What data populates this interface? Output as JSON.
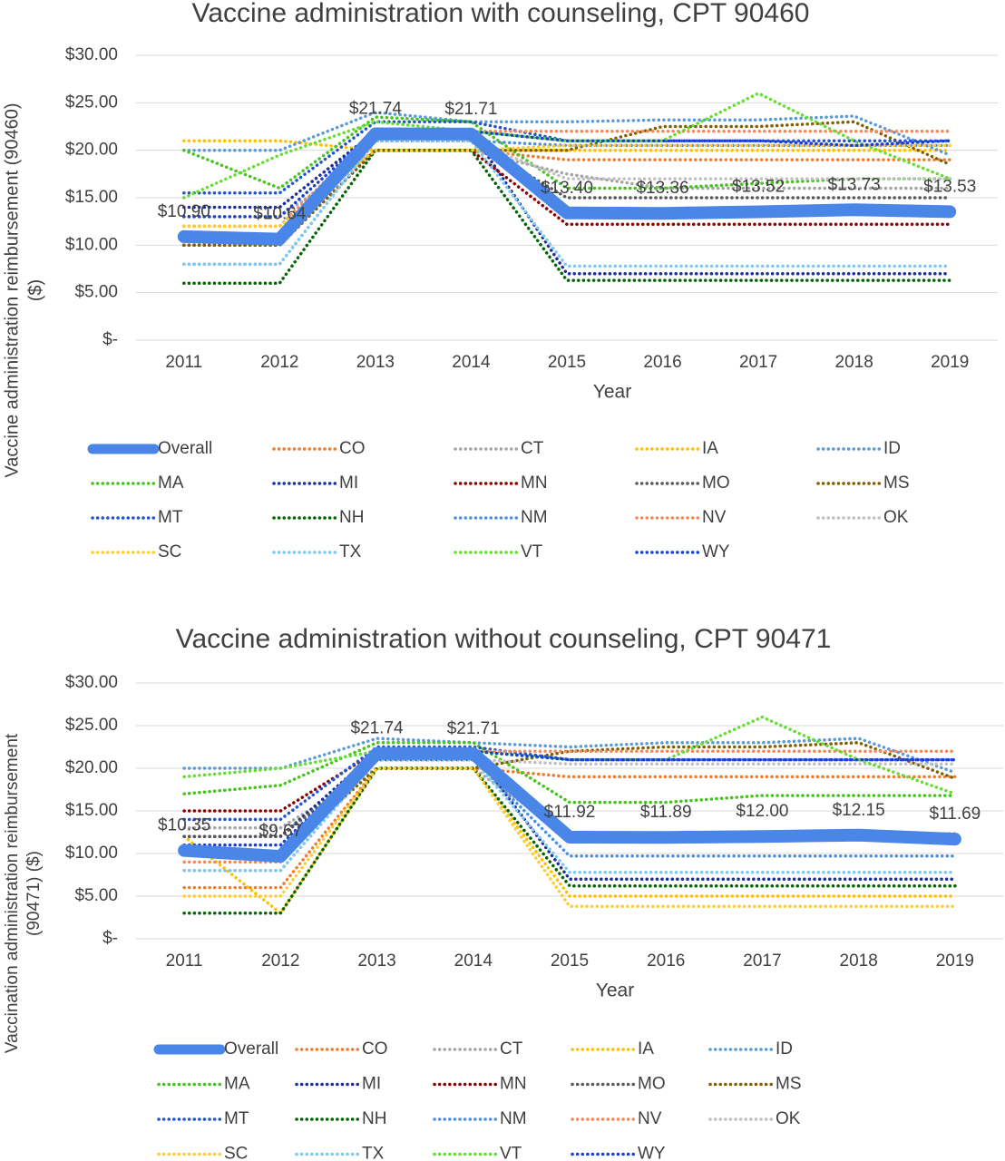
{
  "chart_data": [
    {
      "type": "line",
      "title": "Vaccine administration with counseling, CPT 90460",
      "xlabel": "Year",
      "ylabel": [
        "Vaccine administration reimbursement (90460)",
        "($)"
      ],
      "categories": [
        "2011",
        "2012",
        "2013",
        "2014",
        "2015",
        "2016",
        "2017",
        "2018",
        "2019"
      ],
      "ylim": [
        0,
        30
      ],
      "yticks": [
        {
          "value": 0,
          "label": "$-"
        },
        {
          "value": 5,
          "label": "$5.00"
        },
        {
          "value": 10,
          "label": "$10.00"
        },
        {
          "value": 15,
          "label": "$15.00"
        },
        {
          "value": 20,
          "label": "$20.00"
        },
        {
          "value": 25,
          "label": "$25.00"
        },
        {
          "value": 30,
          "label": "$30.00"
        }
      ],
      "grid": true,
      "series": [
        {
          "name": "Overall",
          "color": "#4a86e8",
          "values": [
            10.9,
            10.64,
            21.74,
            21.71,
            13.4,
            13.36,
            13.52,
            13.73,
            13.53
          ],
          "value_labels": [
            "$10.90",
            "$10.64",
            "$21.74",
            "$21.71",
            "$13.40",
            "$13.36",
            "$13.52",
            "$13.73",
            "$13.53"
          ]
        },
        {
          "name": "CO",
          "color": "#ed7d31",
          "values": [
            12,
            12,
            20,
            20,
            19,
            19,
            19,
            19,
            19
          ]
        },
        {
          "name": "CT",
          "color": "#a5a5a5",
          "values": [
            13,
            13,
            20,
            20,
            17.5,
            16,
            16,
            16,
            16
          ]
        },
        {
          "name": "IA",
          "color": "#ffc000",
          "values": [
            21,
            21,
            20,
            20,
            20,
            20,
            20,
            20,
            20
          ]
        },
        {
          "name": "ID",
          "color": "#5b9bd5",
          "values": [
            20,
            20,
            24,
            23,
            23,
            23.2,
            23.2,
            23.6,
            19.5
          ]
        },
        {
          "name": "MA",
          "color": "#44c41c",
          "values": [
            20,
            16,
            23.5,
            23,
            16,
            16,
            16.5,
            17,
            17
          ]
        },
        {
          "name": "MI",
          "color": "#1c2f99",
          "values": [
            14,
            14,
            22,
            22,
            7,
            7,
            7,
            7,
            7
          ]
        },
        {
          "name": "MN",
          "color": "#8b0000",
          "values": [
            10,
            10,
            20,
            20,
            12.2,
            12.2,
            12.2,
            12.2,
            12.2
          ]
        },
        {
          "name": "MO",
          "color": "#595959",
          "values": [
            10,
            10,
            21,
            21,
            15,
            15,
            15,
            15,
            15
          ]
        },
        {
          "name": "MS",
          "color": "#7f5f00",
          "values": [
            10,
            10,
            20,
            20,
            20,
            22.5,
            22.5,
            23,
            18.5
          ]
        },
        {
          "name": "MT",
          "color": "#2255cc",
          "values": [
            15.5,
            15.5,
            23,
            23,
            21,
            21,
            21,
            21,
            21
          ]
        },
        {
          "name": "NH",
          "color": "#006400",
          "values": [
            6,
            6,
            20,
            20,
            6.3,
            6.3,
            6.3,
            6.3,
            6.3
          ]
        },
        {
          "name": "NM",
          "color": "#4d8fe0",
          "values": [
            8,
            8,
            21,
            21,
            20.5,
            20.5,
            20.5,
            20.5,
            20.5
          ]
        },
        {
          "name": "NV",
          "color": "#f4885a",
          "values": [
            12,
            12,
            22,
            22,
            22,
            22,
            22,
            22,
            22
          ]
        },
        {
          "name": "OK",
          "color": "#c0c0c0",
          "values": [
            8,
            8,
            21,
            21,
            17,
            17,
            17,
            17,
            17
          ]
        },
        {
          "name": "SC",
          "color": "#ffcc33",
          "values": [
            12,
            12,
            20,
            20,
            20.5,
            20.5,
            20.5,
            20.5,
            20.5
          ]
        },
        {
          "name": "TX",
          "color": "#7fc8f0",
          "values": [
            8,
            8,
            21,
            21,
            7.8,
            7.8,
            7.8,
            7.8,
            7.8
          ]
        },
        {
          "name": "VT",
          "color": "#66dd33",
          "values": [
            15,
            19.5,
            23,
            22,
            21,
            21,
            26,
            21,
            17
          ]
        },
        {
          "name": "WY",
          "color": "#1a3fd0",
          "values": [
            13,
            13,
            22,
            22,
            21,
            21,
            21,
            20.5,
            21
          ]
        }
      ]
    },
    {
      "type": "line",
      "title": "Vaccine administration without counseling, CPT 90471",
      "xlabel": "Year",
      "ylabel": [
        "Vaccination administration reimbursement",
        "(90471) ($)"
      ],
      "categories": [
        "2011",
        "2012",
        "2013",
        "2014",
        "2015",
        "2016",
        "2017",
        "2018",
        "2019"
      ],
      "ylim": [
        0,
        30
      ],
      "yticks": [
        {
          "value": 0,
          "label": "$-"
        },
        {
          "value": 5,
          "label": "$5.00"
        },
        {
          "value": 10,
          "label": "$10.00"
        },
        {
          "value": 15,
          "label": "$15.00"
        },
        {
          "value": 20,
          "label": "$20.00"
        },
        {
          "value": 25,
          "label": "$25.00"
        },
        {
          "value": 30,
          "label": "$30.00"
        }
      ],
      "grid": true,
      "series": [
        {
          "name": "Overall",
          "color": "#4a86e8",
          "values": [
            10.35,
            9.67,
            21.74,
            21.71,
            11.92,
            11.89,
            12.0,
            12.15,
            11.69
          ],
          "value_labels": [
            "$10.35",
            "$9.67",
            "$21.74",
            "$21.71",
            "$11.92",
            "$11.89",
            "$12.00",
            "$12.15",
            "$11.69"
          ]
        },
        {
          "name": "CO",
          "color": "#ed7d31",
          "values": [
            6,
            6,
            20,
            20,
            19,
            19,
            19,
            19,
            19
          ]
        },
        {
          "name": "CT",
          "color": "#a5a5a5",
          "values": [
            13,
            13,
            20,
            20,
            12,
            12,
            12,
            12,
            12
          ]
        },
        {
          "name": "IA",
          "color": "#ffc000",
          "values": [
            12,
            3,
            20,
            20,
            5,
            5,
            5,
            5,
            5
          ]
        },
        {
          "name": "ID",
          "color": "#5b9bd5",
          "values": [
            20,
            20,
            23.5,
            23,
            22.5,
            23,
            23,
            23.5,
            19.5
          ]
        },
        {
          "name": "MA",
          "color": "#44c41c",
          "values": [
            17,
            18,
            23,
            23,
            16,
            16,
            16.8,
            16.8,
            16.8
          ]
        },
        {
          "name": "MI",
          "color": "#1c2f99",
          "values": [
            12,
            12,
            22,
            22,
            7,
            7,
            7,
            7,
            7
          ]
        },
        {
          "name": "MN",
          "color": "#8b0000",
          "values": [
            15,
            15,
            22,
            22,
            12.3,
            12.3,
            12.3,
            12.3,
            12.3
          ]
        },
        {
          "name": "MO",
          "color": "#595959",
          "values": [
            12,
            12,
            21,
            21,
            12.1,
            12.1,
            12.1,
            12.1,
            12.1
          ]
        },
        {
          "name": "MS",
          "color": "#7f5f00",
          "values": [
            10,
            10,
            20,
            20,
            22,
            22.5,
            22.5,
            23,
            18.8
          ]
        },
        {
          "name": "MT",
          "color": "#2255cc",
          "values": [
            14,
            14,
            22.5,
            22.5,
            21,
            21,
            21,
            21,
            21
          ]
        },
        {
          "name": "NH",
          "color": "#006400",
          "values": [
            3,
            3,
            20,
            20,
            6.2,
            6.2,
            6.2,
            6.2,
            6.2
          ]
        },
        {
          "name": "NM",
          "color": "#4d8fe0",
          "values": [
            8,
            8,
            21,
            21,
            9.7,
            9.7,
            9.7,
            9.7,
            9.7
          ]
        },
        {
          "name": "NV",
          "color": "#f4885a",
          "values": [
            9,
            9,
            22,
            22,
            22,
            22,
            22,
            22,
            22
          ]
        },
        {
          "name": "OK",
          "color": "#c0c0c0",
          "values": [
            8,
            8,
            21,
            21,
            20.5,
            20.5,
            20.5,
            20.5,
            20.5
          ]
        },
        {
          "name": "SC",
          "color": "#ffcc33",
          "values": [
            5,
            5,
            20,
            20,
            3.8,
            3.8,
            3.8,
            3.8,
            3.8
          ]
        },
        {
          "name": "TX",
          "color": "#7fc8f0",
          "values": [
            8,
            8,
            21,
            21,
            7.8,
            7.8,
            7.8,
            7.8,
            7.8
          ]
        },
        {
          "name": "VT",
          "color": "#66dd33",
          "values": [
            19,
            20,
            22,
            22,
            21,
            21,
            26,
            21,
            17
          ]
        },
        {
          "name": "WY",
          "color": "#1a3fd0",
          "values": [
            11,
            11,
            22,
            22,
            21,
            21,
            21,
            21,
            21
          ]
        }
      ]
    }
  ]
}
